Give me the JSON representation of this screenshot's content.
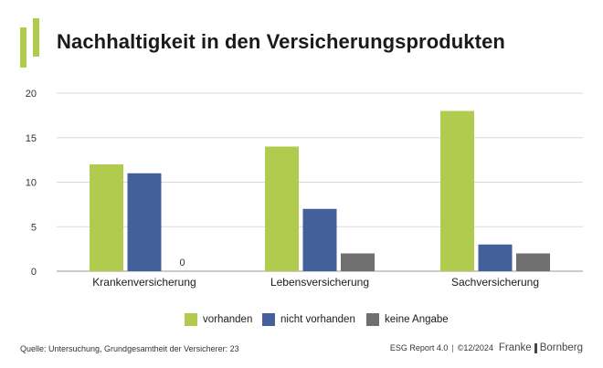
{
  "title": "Nachhaltigkeit in den Versicherungsprodukten",
  "colors": {
    "vorhanden": "#b0cb4e",
    "nicht_vorhanden": "#44609a",
    "keine_angabe": "#6f6f6f",
    "accent": "#9cc33c",
    "grid": "#d9d9d9",
    "axis": "#9a9a9a"
  },
  "chart_data": {
    "type": "bar",
    "categories": [
      "Krankenversicherung",
      "Lebensversicherung",
      "Sachversicherung"
    ],
    "series": [
      {
        "name": "vorhanden",
        "values": [
          12,
          14,
          18
        ]
      },
      {
        "name": "nicht vorhanden",
        "values": [
          11,
          7,
          3
        ]
      },
      {
        "name": "keine Angabe",
        "values": [
          0,
          2,
          2
        ]
      }
    ],
    "y_ticks": [
      "0",
      "5",
      "10",
      "15",
      "20"
    ],
    "ylim": [
      0,
      20
    ],
    "zero_label": "0",
    "grid": true,
    "legend": "bottom-center"
  },
  "footer": {
    "source": "Quelle: Untersuchung, Grundgesamtheit der Versicherer: 23",
    "report": "ESG Report 4.0",
    "date": "©12/2024",
    "brand_left": "Franke",
    "brand_right": "Bornberg"
  }
}
